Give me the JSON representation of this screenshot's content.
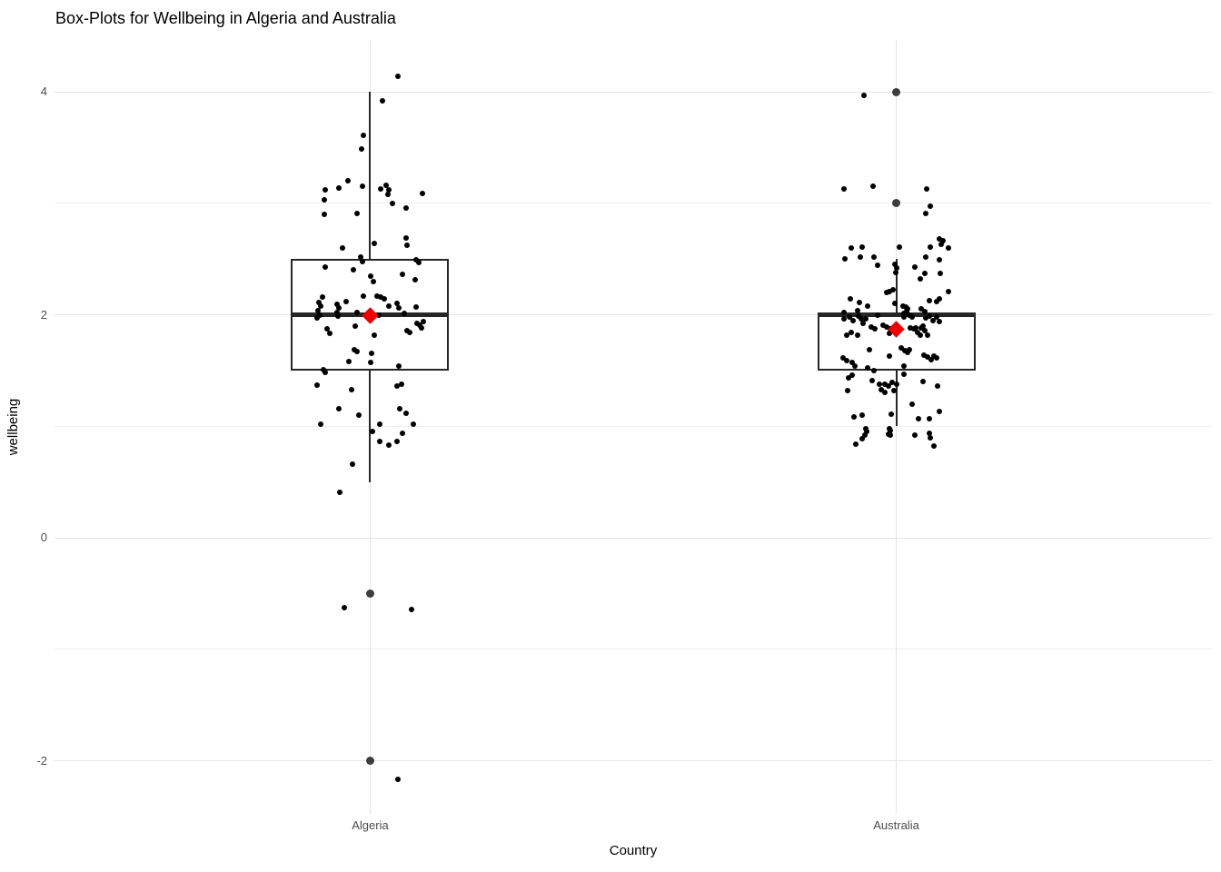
{
  "chart_data": {
    "type": "boxplot",
    "title": "Box-Plots for Wellbeing in Algeria and Australia",
    "xlabel": "Country",
    "ylabel": "wellbeing",
    "categories": [
      "Algeria",
      "Australia"
    ],
    "y_ticks": [
      {
        "label": "4",
        "value": 4
      },
      {
        "label": "2",
        "value": 2
      },
      {
        "label": "0",
        "value": 0
      },
      {
        "label": "-2",
        "value": -2
      }
    ],
    "y_minor_ticks": [
      3,
      1,
      -1
    ],
    "ylim": [
      -2.47,
      4.45
    ],
    "grid": "on",
    "legend": "none",
    "colors": {
      "background": "#ffffff",
      "grid_major": "#e4e4e4",
      "grid_minor": "#f0f0f0",
      "box_line": "#262626",
      "box_fill": "#ffffff",
      "point": "#000000",
      "outlier_point": "#3d3d3d",
      "mean_diamond": "#ee0000",
      "tick_label": "#4d4d4d",
      "title_text": "#000000"
    },
    "groups": [
      {
        "name": "Algeria",
        "box": {
          "q1": 1.5,
          "median": 2.0,
          "q3": 2.5,
          "whisker_low": 0.5,
          "whisker_high": 4.0
        },
        "mean": 1.99,
        "outliers": [
          -0.5,
          -2.0
        ],
        "jitter_points": [
          [
            31,
            4.14
          ],
          [
            14,
            3.92
          ],
          [
            -7,
            3.61
          ],
          [
            -9,
            3.49
          ],
          [
            -24,
            3.2
          ],
          [
            -49,
            3.12
          ],
          [
            -34,
            3.14
          ],
          [
            -8,
            3.15
          ],
          [
            12,
            3.13
          ],
          [
            18,
            3.16
          ],
          [
            21,
            3.12
          ],
          [
            20,
            3.08
          ],
          [
            58,
            3.09
          ],
          [
            -50,
            3.03
          ],
          [
            25,
            3.0
          ],
          [
            40,
            2.96
          ],
          [
            -50,
            2.9
          ],
          [
            -14,
            2.91
          ],
          [
            40,
            2.69
          ],
          [
            41,
            2.62
          ],
          [
            5,
            2.64
          ],
          [
            -30,
            2.6
          ],
          [
            -10,
            2.52
          ],
          [
            -8,
            2.48
          ],
          [
            51,
            2.49
          ],
          [
            54,
            2.47
          ],
          [
            -49,
            2.43
          ],
          [
            -18,
            2.4
          ],
          [
            1,
            2.35
          ],
          [
            4,
            2.3
          ],
          [
            36,
            2.36
          ],
          [
            50,
            2.31
          ],
          [
            -7,
            2.17
          ],
          [
            8,
            2.17
          ],
          [
            12,
            2.16
          ],
          [
            16,
            2.14
          ],
          [
            -52,
            2.16
          ],
          [
            -56,
            2.11
          ],
          [
            -54,
            2.08
          ],
          [
            -57,
            2.04
          ],
          [
            -55,
            2.0
          ],
          [
            -58,
            1.97
          ],
          [
            -36,
            2.09
          ],
          [
            -34,
            2.06
          ],
          [
            -36,
            2.02
          ],
          [
            -35,
            1.99
          ],
          [
            -26,
            2.12
          ],
          [
            21,
            2.08
          ],
          [
            30,
            2.1
          ],
          [
            32,
            2.06
          ],
          [
            38,
            2.01
          ],
          [
            51,
            2.07
          ],
          [
            -14,
            2.02
          ],
          [
            10,
            2.0
          ],
          [
            -16,
            1.9
          ],
          [
            -47,
            1.87
          ],
          [
            -44,
            1.83
          ],
          [
            5,
            1.82
          ],
          [
            41,
            1.86
          ],
          [
            44,
            1.84
          ],
          [
            52,
            1.92
          ],
          [
            55,
            1.91
          ],
          [
            57,
            1.88
          ],
          [
            59,
            1.94
          ],
          [
            -17,
            1.69
          ],
          [
            -14,
            1.67
          ],
          [
            2,
            1.65
          ],
          [
            -23,
            1.58
          ],
          [
            1,
            1.57
          ],
          [
            32,
            1.54
          ],
          [
            -51,
            1.51
          ],
          [
            -49,
            1.48
          ],
          [
            -58,
            1.37
          ],
          [
            -20,
            1.33
          ],
          [
            -34,
            1.16
          ],
          [
            -12,
            1.1
          ],
          [
            -54,
            1.02
          ],
          [
            30,
            1.36
          ],
          [
            35,
            1.38
          ],
          [
            33,
            1.16
          ],
          [
            40,
            1.12
          ],
          [
            3,
            0.95
          ],
          [
            11,
            1.02
          ],
          [
            48,
            1.02
          ],
          [
            36,
            0.94
          ],
          [
            11,
            0.86
          ],
          [
            21,
            0.83
          ],
          [
            30,
            0.86
          ],
          [
            -19,
            0.66
          ],
          [
            -33,
            0.41
          ],
          [
            -28,
            -0.63
          ],
          [
            46,
            -0.64
          ],
          [
            31,
            -2.17
          ]
        ]
      },
      {
        "name": "Australia",
        "box": {
          "q1": 1.5,
          "median": 2.0,
          "q3": 2.0,
          "whisker_low": 1.0,
          "whisker_high": 2.5
        },
        "mean": 1.87,
        "outliers": [
          4.0,
          3.0
        ],
        "jitter_points": [
          [
            -36,
            3.97
          ],
          [
            -58,
            3.13
          ],
          [
            -26,
            3.15
          ],
          [
            33,
            3.13
          ],
          [
            37,
            2.97
          ],
          [
            32,
            2.91
          ],
          [
            -50,
            2.6
          ],
          [
            -38,
            2.61
          ],
          [
            -57,
            2.5
          ],
          [
            -40,
            2.52
          ],
          [
            -25,
            2.52
          ],
          [
            -21,
            2.44
          ],
          [
            3,
            2.61
          ],
          [
            -2,
            2.45
          ],
          [
            0,
            2.42
          ],
          [
            -1,
            2.38
          ],
          [
            20,
            2.43
          ],
          [
            32,
            2.52
          ],
          [
            37,
            2.61
          ],
          [
            47,
            2.68
          ],
          [
            49,
            2.63
          ],
          [
            51,
            2.66
          ],
          [
            57,
            2.6
          ],
          [
            31,
            2.37
          ],
          [
            47,
            2.49
          ],
          [
            48,
            2.37
          ],
          [
            26,
            2.32
          ],
          [
            -11,
            2.2
          ],
          [
            -8,
            2.21
          ],
          [
            -4,
            2.22
          ],
          [
            -51,
            2.14
          ],
          [
            -41,
            2.11
          ],
          [
            -32,
            2.08
          ],
          [
            -2,
            2.1
          ],
          [
            7,
            2.08
          ],
          [
            10,
            2.07
          ],
          [
            12,
            2.05
          ],
          [
            36,
            2.13
          ],
          [
            44,
            2.12
          ],
          [
            47,
            2.14
          ],
          [
            57,
            2.21
          ],
          [
            -58,
            2.02
          ],
          [
            -43,
            2.04
          ],
          [
            -21,
            2.0
          ],
          [
            8,
            2.01
          ],
          [
            11,
            2.03
          ],
          [
            14,
            2.0
          ],
          [
            17,
            1.98
          ],
          [
            27,
            2.05
          ],
          [
            31,
            2.03
          ],
          [
            -58,
            1.96
          ],
          [
            -52,
            1.98
          ],
          [
            -48,
            1.95
          ],
          [
            -42,
            1.99
          ],
          [
            -39,
            1.96
          ],
          [
            -37,
            1.92
          ],
          [
            -34,
            1.96
          ],
          [
            -55,
            1.82
          ],
          [
            -50,
            1.84
          ],
          [
            -43,
            1.82
          ],
          [
            -28,
            1.89
          ],
          [
            -24,
            1.87
          ],
          [
            -15,
            1.91
          ],
          [
            -11,
            1.89
          ],
          [
            -7,
            1.87
          ],
          [
            -8,
            1.83
          ],
          [
            8,
            1.98
          ],
          [
            15,
            1.88
          ],
          [
            19,
            1.87
          ],
          [
            23,
            1.84
          ],
          [
            21,
            1.88
          ],
          [
            26,
            1.82
          ],
          [
            32,
            1.97
          ],
          [
            36,
            1.99
          ],
          [
            40,
            1.95
          ],
          [
            44,
            1.98
          ],
          [
            47,
            1.94
          ],
          [
            34,
            1.82
          ],
          [
            27,
            1.88
          ],
          [
            29,
            1.9
          ],
          [
            31,
            1.86
          ],
          [
            -30,
            1.69
          ],
          [
            -8,
            1.63
          ],
          [
            5,
            1.7
          ],
          [
            9,
            1.68
          ],
          [
            12,
            1.66
          ],
          [
            14,
            1.69
          ],
          [
            30,
            1.64
          ],
          [
            34,
            1.62
          ],
          [
            38,
            1.6
          ],
          [
            41,
            1.63
          ],
          [
            44,
            1.61
          ],
          [
            -59,
            1.61
          ],
          [
            -55,
            1.59
          ],
          [
            -49,
            1.57
          ],
          [
            -46,
            1.54
          ],
          [
            -32,
            1.52
          ],
          [
            -25,
            1.5
          ],
          [
            8,
            1.54
          ],
          [
            8,
            1.47
          ],
          [
            -49,
            1.46
          ],
          [
            -53,
            1.43
          ],
          [
            -54,
            1.32
          ],
          [
            -27,
            1.41
          ],
          [
            -19,
            1.38
          ],
          [
            -13,
            1.38
          ],
          [
            -9,
            1.36
          ],
          [
            -5,
            1.39
          ],
          [
            -3,
            1.32
          ],
          [
            -13,
            1.3
          ],
          [
            -17,
            1.33
          ],
          [
            0,
            1.38
          ],
          [
            29,
            1.4
          ],
          [
            45,
            1.36
          ],
          [
            17,
            1.2
          ],
          [
            -6,
            1.11
          ],
          [
            47,
            1.13
          ],
          [
            -47,
            1.08
          ],
          [
            -38,
            1.1
          ],
          [
            24,
            1.07
          ],
          [
            36,
            1.07
          ],
          [
            -34,
            0.98
          ],
          [
            -33,
            0.95
          ],
          [
            -35,
            0.92
          ],
          [
            -38,
            0.89
          ],
          [
            -45,
            0.84
          ],
          [
            -8,
            0.98
          ],
          [
            -7,
            0.96
          ],
          [
            -9,
            0.93
          ],
          [
            -7,
            0.92
          ],
          [
            20,
            0.92
          ],
          [
            36,
            0.94
          ],
          [
            37,
            0.9
          ],
          [
            41,
            0.82
          ]
        ]
      }
    ]
  }
}
